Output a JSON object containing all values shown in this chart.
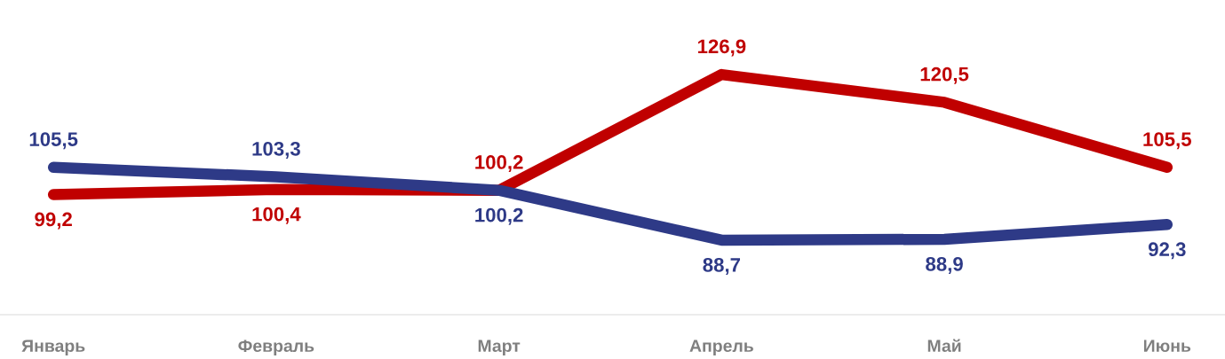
{
  "chart_data": {
    "type": "line",
    "categories": [
      "Январь",
      "Февраль",
      "Март",
      "Апрель",
      "Май",
      "Июнь"
    ],
    "series": [
      {
        "color": "#c00000",
        "values": [
          99.2,
          100.4,
          100.2,
          126.9,
          120.5,
          105.5
        ],
        "value_labels": [
          "99,2",
          "100,4",
          "100,2",
          "126,9",
          "120,5",
          "105,5"
        ]
      },
      {
        "color": "#2e3a87",
        "values": [
          105.5,
          103.3,
          100.2,
          88.7,
          88.9,
          92.3
        ],
        "value_labels": [
          "105,5",
          "103,3",
          "100,2",
          "88,7",
          "88,9",
          "92,3"
        ]
      }
    ],
    "grid": false,
    "legend": false,
    "line_style": "solid"
  }
}
